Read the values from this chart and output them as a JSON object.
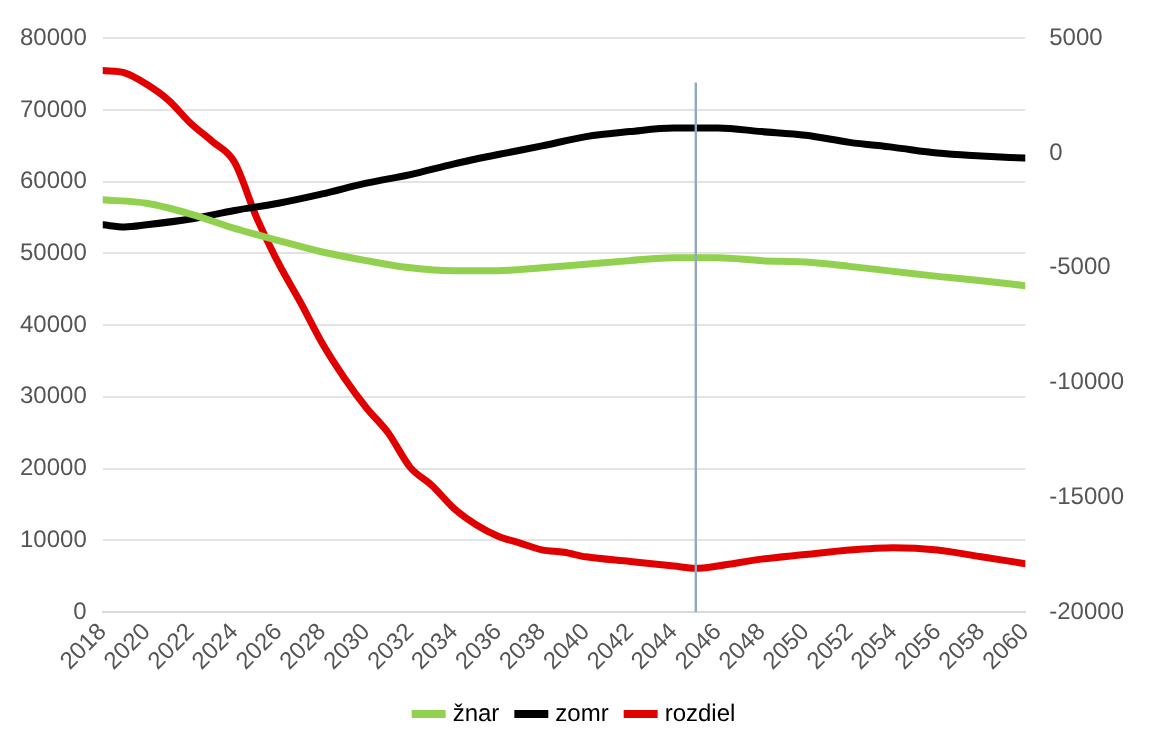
{
  "chart_data": {
    "type": "line",
    "xlim": [
      2018,
      2060
    ],
    "xticks": [
      2018,
      2020,
      2022,
      2024,
      2026,
      2028,
      2030,
      2032,
      2034,
      2036,
      2038,
      2040,
      2042,
      2044,
      2046,
      2048,
      2050,
      2052,
      2054,
      2056,
      2058,
      2060
    ],
    "ylim": [
      0,
      80000
    ],
    "yticks": [
      0,
      10000,
      20000,
      30000,
      40000,
      50000,
      60000,
      70000,
      80000
    ],
    "y2lim": [
      -20000,
      5000
    ],
    "y2ticks": [
      -20000,
      -15000,
      -10000,
      -5000,
      0,
      5000
    ],
    "grid": "y",
    "legend": "bottom",
    "marker": "none",
    "line_style": "solid",
    "ref_lines": [
      {
        "axis": "x",
        "value": 2045,
        "color": "#8ea9c1"
      }
    ],
    "series": [
      {
        "name": "žnar",
        "color": "#92d050",
        "x": [
          2018,
          2020,
          2022,
          2024,
          2026,
          2028,
          2030,
          2032,
          2034,
          2036,
          2038,
          2040,
          2042,
          2044,
          2046,
          2048,
          2050,
          2052,
          2054,
          2056,
          2058,
          2060
        ],
        "values": [
          57500,
          57000,
          55500,
          53500,
          51800,
          50200,
          49000,
          48000,
          47600,
          47600,
          48000,
          48500,
          49000,
          49400,
          49400,
          49000,
          48800,
          48200,
          47500,
          46800,
          46200,
          45500
        ]
      },
      {
        "name": "zomr",
        "color": "#000000",
        "x": [
          2018,
          2019,
          2020,
          2022,
          2024,
          2026,
          2028,
          2030,
          2032,
          2034,
          2036,
          2038,
          2040,
          2042,
          2044,
          2046,
          2048,
          2050,
          2052,
          2054,
          2056,
          2058,
          2060
        ],
        "values": [
          54000,
          53700,
          54000,
          54800,
          56000,
          57000,
          58300,
          59800,
          61000,
          62500,
          63800,
          65000,
          66300,
          67000,
          67500,
          67500,
          67000,
          66500,
          65500,
          64800,
          64000,
          63600,
          63300
        ]
      },
      {
        "name": "rozdiel",
        "color": "#e00000",
        "axis": "y2",
        "x": [
          2018,
          2019,
          2020,
          2021,
          2022,
          2023,
          2024,
          2025,
          2026,
          2027,
          2028,
          2029,
          2030,
          2031,
          2032,
          2033,
          2034,
          2035,
          2036,
          2037,
          2038,
          2039,
          2040,
          2042,
          2044,
          2045,
          2046,
          2048,
          2050,
          2052,
          2054,
          2056,
          2058,
          2060
        ],
        "values": [
          3600,
          3500,
          3000,
          2300,
          1300,
          500,
          -400,
          -2800,
          -4800,
          -6500,
          -8300,
          -9800,
          -11100,
          -12200,
          -13700,
          -14500,
          -15500,
          -16200,
          -16700,
          -17000,
          -17300,
          -17400,
          -17600,
          -17800,
          -18000,
          -18100,
          -18000,
          -17700,
          -17500,
          -17300,
          -17200,
          -17300,
          -17600,
          -17900
        ]
      }
    ]
  }
}
